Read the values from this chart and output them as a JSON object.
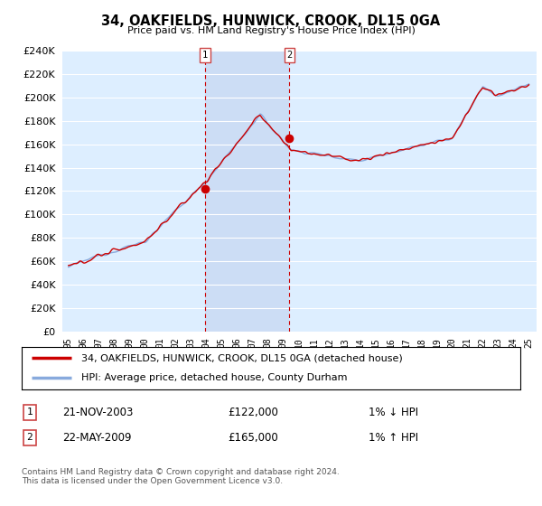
{
  "title": "34, OAKFIELDS, HUNWICK, CROOK, DL15 0GA",
  "subtitle": "Price paid vs. HM Land Registry's House Price Index (HPI)",
  "legend_line1": "34, OAKFIELDS, HUNWICK, CROOK, DL15 0GA (detached house)",
  "legend_line2": "HPI: Average price, detached house, County Durham",
  "sale1_date": "21-NOV-2003",
  "sale1_price": "£122,000",
  "sale1_hpi": "1% ↓ HPI",
  "sale2_date": "22-MAY-2009",
  "sale2_price": "£165,000",
  "sale2_hpi": "1% ↑ HPI",
  "footer": "Contains HM Land Registry data © Crown copyright and database right 2024.\nThis data is licensed under the Open Government Licence v3.0.",
  "ylim": [
    0,
    240000
  ],
  "yticks": [
    0,
    20000,
    40000,
    60000,
    80000,
    100000,
    120000,
    140000,
    160000,
    180000,
    200000,
    220000,
    240000
  ],
  "sale1_year": 2003.9,
  "sale1_value": 122000,
  "sale2_year": 2009.4,
  "sale2_value": 165000,
  "hpi_color": "#88aadd",
  "price_color": "#cc0000",
  "marker_color": "#cc0000",
  "vline_color": "#cc0000",
  "shade_color": "#ccddf5",
  "plot_bg_color": "#ddeeff",
  "grid_color": "#bbccdd"
}
